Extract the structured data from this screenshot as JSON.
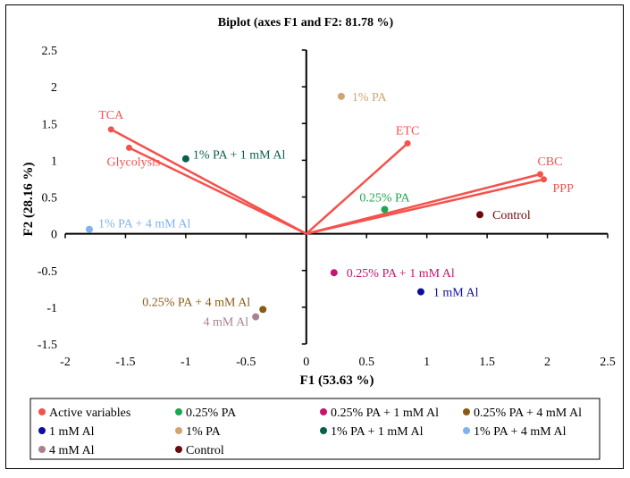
{
  "chart_data": {
    "type": "scatter",
    "title": "Biplot (axes F1 and F2: 81.78 %)",
    "xlabel": "F1 (53.63 %)",
    "ylabel": "F2 (28.16 %)",
    "xlim": [
      -2,
      2.5
    ],
    "ylim": [
      -1.5,
      2.5
    ],
    "xticks": [
      -2,
      -1.5,
      -1,
      -0.5,
      0,
      0.5,
      1,
      1.5,
      2,
      2.5
    ],
    "yticks": [
      -1.5,
      -1,
      -0.5,
      0,
      0.5,
      1,
      1.5,
      2,
      2.5
    ],
    "xtick_labels": [
      "-2",
      "-1.5",
      "-1",
      "-0.5",
      "0",
      "0.5",
      "1",
      "1.5",
      "2",
      "2.5"
    ],
    "ytick_labels": [
      "-1.5",
      "-1",
      "-0.5",
      "0",
      "0.5",
      "1",
      "1.5",
      "2",
      "2.5"
    ],
    "grid": false,
    "legend_position": "bottom",
    "vector_color": "#F4524D",
    "active_variables": [
      {
        "name": "TCA",
        "x": -1.62,
        "y": 1.42
      },
      {
        "name": "Glycolysis",
        "x": -1.47,
        "y": 1.17
      },
      {
        "name": "ETC",
        "x": 0.84,
        "y": 1.23
      },
      {
        "name": "CBC",
        "x": 1.94,
        "y": 0.81
      },
      {
        "name": "PPP",
        "x": 1.97,
        "y": 0.74
      }
    ],
    "observations": [
      {
        "name": "0.25% PA",
        "x": 0.65,
        "y": 0.33,
        "color": "#19A84F"
      },
      {
        "name": "0.25% PA + 1 mM Al",
        "x": 0.23,
        "y": -0.53,
        "color": "#C7156F"
      },
      {
        "name": "0.25% PA + 4 mM Al",
        "x": -0.36,
        "y": -1.03,
        "color": "#8A5A13"
      },
      {
        "name": "1 mM Al",
        "x": 0.95,
        "y": -0.79,
        "color": "#0D0D9E"
      },
      {
        "name": "1% PA",
        "x": 0.29,
        "y": 1.87,
        "color": "#CFA673"
      },
      {
        "name": "1% PA + 1 mM Al",
        "x": -1.0,
        "y": 1.02,
        "color": "#0B5D4D"
      },
      {
        "name": "1% PA + 4 mM Al",
        "x": -1.8,
        "y": 0.06,
        "color": "#7FB2F0"
      },
      {
        "name": "4 mM Al",
        "x": -0.42,
        "y": -1.13,
        "color": "#A9828E"
      },
      {
        "name": "Control",
        "x": 1.44,
        "y": 0.26,
        "color": "#6B0A0A"
      }
    ],
    "legend": [
      {
        "label": "Active variables",
        "color": "#F4524D"
      },
      {
        "label": "0.25% PA",
        "color": "#19A84F"
      },
      {
        "label": "0.25% PA + 1 mM Al",
        "color": "#C7156F"
      },
      {
        "label": "0.25% PA + 4 mM Al",
        "color": "#8A5A13"
      },
      {
        "label": "1 mM Al",
        "color": "#0D0D9E"
      },
      {
        "label": "1% PA",
        "color": "#CFA673"
      },
      {
        "label": "1% PA + 1 mM Al",
        "color": "#0B5D4D"
      },
      {
        "label": "1% PA + 4 mM Al",
        "color": "#7FB2F0"
      },
      {
        "label": "4 mM Al",
        "color": "#A9828E"
      },
      {
        "label": "Control",
        "color": "#6B0A0A"
      }
    ]
  }
}
